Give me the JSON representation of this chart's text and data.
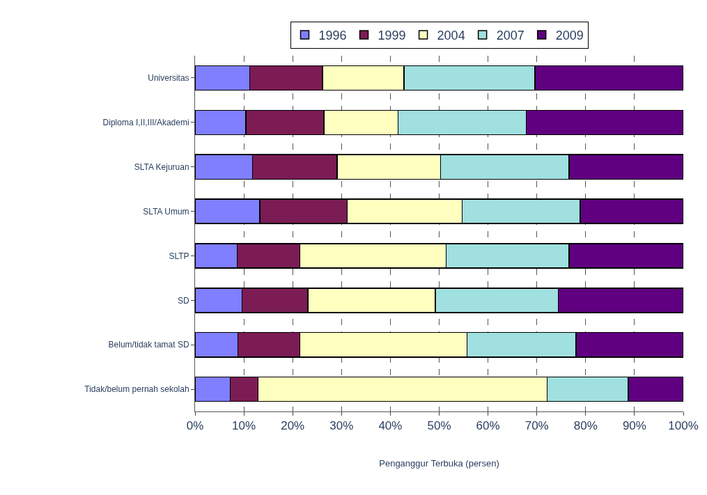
{
  "chart_data": {
    "type": "bar",
    "orientation": "horizontal",
    "stacked": true,
    "xlabel": "Penganggur Terbuka (persen)",
    "categories": [
      "Universitas",
      "Diploma I,II,III/Akademi",
      "SLTA Kejuruan",
      "SLTA Umum",
      "SLTP",
      "SD",
      "Belum/tidak tamat SD",
      "Tidak/belum pernah sekolah"
    ],
    "series": [
      {
        "name": "1996",
        "color": "#7f7fff",
        "values": [
          11.2,
          10.4,
          11.8,
          13.3,
          8.6,
          9.6,
          8.8,
          7.2
        ]
      },
      {
        "name": "1999",
        "color": "#7b1c55",
        "values": [
          14.9,
          16.0,
          17.3,
          17.9,
          12.9,
          13.5,
          12.7,
          5.7
        ]
      },
      {
        "name": "2004",
        "color": "#ffffc0",
        "values": [
          16.7,
          15.2,
          21.2,
          23.5,
          29.9,
          26.1,
          34.2,
          59.2
        ]
      },
      {
        "name": "2007",
        "color": "#a0e0e0",
        "values": [
          26.8,
          26.2,
          26.3,
          24.2,
          25.2,
          25.2,
          22.3,
          16.6
        ]
      },
      {
        "name": "2009",
        "color": "#600080",
        "values": [
          30.4,
          32.2,
          23.4,
          21.1,
          23.4,
          25.6,
          22.0,
          11.3
        ]
      }
    ],
    "xlim": [
      0,
      100
    ],
    "xticks": [
      {
        "value": 0,
        "label": "0%"
      },
      {
        "value": 10,
        "label": "10%"
      },
      {
        "value": 20,
        "label": "20%"
      },
      {
        "value": 30,
        "label": "30%"
      },
      {
        "value": 40,
        "label": "40%"
      },
      {
        "value": 50,
        "label": "50%"
      },
      {
        "value": 60,
        "label": "60%"
      },
      {
        "value": 70,
        "label": "70%"
      },
      {
        "value": 80,
        "label": "80%"
      },
      {
        "value": 90,
        "label": "90%"
      },
      {
        "value": 100,
        "label": "100%"
      }
    ],
    "grid": "x",
    "legend": "top"
  }
}
